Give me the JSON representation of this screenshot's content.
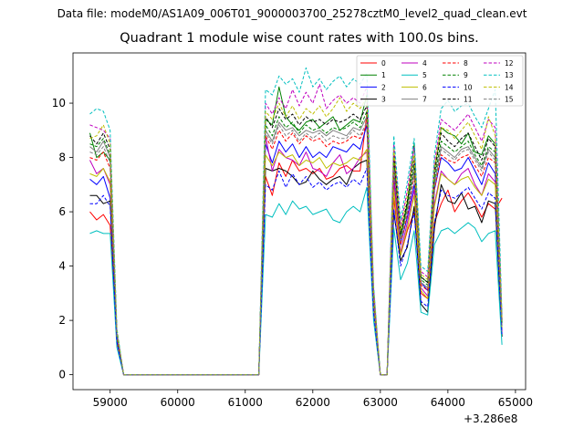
{
  "suptitle": "Data file: modeM0/AS1A09_006T01_9000003700_25278cztM0_level2_quad_clean.evt",
  "chart_data": {
    "type": "line",
    "title": "Quadrant 1 module wise count rates with 100.0s bins.",
    "xlabel": "",
    "ylabel": "",
    "x_offset_label": "+3.286e8",
    "xlim": [
      58450,
      65150
    ],
    "ylim": [
      -0.55,
      11.85
    ],
    "xticks": [
      59000,
      60000,
      61000,
      62000,
      63000,
      64000,
      65000
    ],
    "xtick_labels": [
      "59000",
      "60000",
      "61000",
      "62000",
      "63000",
      "64000",
      "65000"
    ],
    "yticks": [
      0,
      2,
      4,
      6,
      8,
      10
    ],
    "ytick_labels": [
      "0",
      "2",
      "4",
      "6",
      "8",
      "10"
    ],
    "legend_position": "upper right",
    "x": [
      58700,
      58800,
      58900,
      59000,
      59100,
      59200,
      59300,
      59400,
      59500,
      59600,
      59700,
      59800,
      59900,
      60000,
      60100,
      60200,
      60300,
      60400,
      60500,
      60600,
      60700,
      60800,
      60900,
      61000,
      61100,
      61200,
      61300,
      61400,
      61500,
      61600,
      61700,
      61800,
      61900,
      62000,
      62100,
      62200,
      62300,
      62400,
      62500,
      62600,
      62700,
      62800,
      62900,
      63000,
      63100,
      63200,
      63300,
      63400,
      63500,
      63600,
      63700,
      63800,
      63900,
      64000,
      64100,
      64200,
      64300,
      64400,
      64500,
      64600,
      64700,
      64800
    ],
    "series": [
      {
        "name": "0",
        "color": "#ff0000",
        "dash": false,
        "values": [
          6.0,
          5.7,
          5.9,
          5.5,
          1.2,
          0,
          0,
          0,
          0,
          0,
          0,
          0,
          0,
          0,
          0,
          0,
          0,
          0,
          0,
          0,
          0,
          0,
          0,
          0,
          0,
          0,
          7.3,
          6.6,
          7.8,
          7.3,
          7.9,
          7.5,
          7.6,
          7.4,
          7.6,
          7.2,
          7.3,
          7.6,
          7.7,
          7.5,
          7.5,
          9.6,
          2.5,
          0,
          0,
          6.5,
          4.4,
          5.3,
          6.0,
          3.0,
          2.8,
          5.6,
          6.3,
          6.8,
          6.0,
          6.4,
          6.7,
          6.3,
          5.8,
          6.3,
          6.1,
          6.5
        ]
      },
      {
        "name": "1",
        "color": "#008000",
        "dash": false,
        "values": [
          8.9,
          8.0,
          8.2,
          7.9,
          1.5,
          0,
          0,
          0,
          0,
          0,
          0,
          0,
          0,
          0,
          0,
          0,
          0,
          0,
          0,
          0,
          0,
          0,
          0,
          0,
          0,
          0,
          9.4,
          9.2,
          10.6,
          9.5,
          9.2,
          9.0,
          9.3,
          9.4,
          9.1,
          9.3,
          9.5,
          9.0,
          9.2,
          9.4,
          9.3,
          10.3,
          3.0,
          0,
          0,
          8.2,
          5.1,
          6.3,
          8.5,
          3.6,
          3.4,
          7.5,
          9.1,
          8.9,
          8.8,
          8.5,
          8.9,
          8.2,
          8.1,
          8.8,
          8.5,
          2.0
        ]
      },
      {
        "name": "2",
        "color": "#0000ff",
        "dash": false,
        "values": [
          7.2,
          7.0,
          7.3,
          6.5,
          1.3,
          0,
          0,
          0,
          0,
          0,
          0,
          0,
          0,
          0,
          0,
          0,
          0,
          0,
          0,
          0,
          0,
          0,
          0,
          0,
          0,
          0,
          8.5,
          7.8,
          8.6,
          8.2,
          8.5,
          8.0,
          8.4,
          8.0,
          8.2,
          8.0,
          8.4,
          8.3,
          8.2,
          8.5,
          8.3,
          9.2,
          2.8,
          0,
          0,
          7.4,
          4.8,
          5.8,
          7.0,
          3.4,
          3.1,
          6.8,
          8.0,
          7.8,
          7.5,
          7.6,
          8.0,
          7.5,
          7.0,
          7.8,
          7.4,
          1.8
        ]
      },
      {
        "name": "3",
        "color": "#000000",
        "dash": false,
        "values": [
          6.6,
          6.6,
          6.3,
          6.4,
          1.3,
          0,
          0,
          0,
          0,
          0,
          0,
          0,
          0,
          0,
          0,
          0,
          0,
          0,
          0,
          0,
          0,
          0,
          0,
          0,
          0,
          0,
          7.6,
          7.5,
          7.6,
          7.5,
          7.3,
          7.0,
          7.1,
          7.5,
          7.2,
          7.0,
          7.2,
          7.3,
          7.0,
          7.6,
          7.8,
          7.9,
          2.4,
          0,
          0,
          6.0,
          4.2,
          4.7,
          6.2,
          2.6,
          2.3,
          5.4,
          7.0,
          6.4,
          6.3,
          6.7,
          6.1,
          6.2,
          5.6,
          6.4,
          6.3,
          1.4
        ]
      },
      {
        "name": "4",
        "color": "#bf00bf",
        "dash": false,
        "values": [
          7.9,
          7.4,
          7.6,
          7.0,
          1.4,
          0,
          0,
          0,
          0,
          0,
          0,
          0,
          0,
          0,
          0,
          0,
          0,
          0,
          0,
          0,
          0,
          0,
          0,
          0,
          0,
          0,
          8.8,
          7.5,
          8.3,
          8.0,
          7.9,
          7.7,
          8.2,
          7.6,
          7.5,
          7.3,
          7.8,
          8.1,
          7.4,
          7.6,
          8.0,
          8.2,
          2.6,
          0,
          0,
          7.1,
          4.5,
          5.6,
          6.8,
          3.2,
          2.9,
          6.3,
          7.5,
          7.2,
          7.0,
          7.4,
          7.6,
          7.0,
          6.6,
          7.4,
          7.1,
          1.6
        ]
      },
      {
        "name": "5",
        "color": "#00bfbf",
        "dash": false,
        "values": [
          5.2,
          5.3,
          5.2,
          5.2,
          1.0,
          0,
          0,
          0,
          0,
          0,
          0,
          0,
          0,
          0,
          0,
          0,
          0,
          0,
          0,
          0,
          0,
          0,
          0,
          0,
          0,
          0,
          5.9,
          5.8,
          6.3,
          5.9,
          6.4,
          6.1,
          6.2,
          5.9,
          6.0,
          6.1,
          5.7,
          5.6,
          6.0,
          6.2,
          6.0,
          6.9,
          2.0,
          0,
          0,
          5.4,
          3.5,
          4.1,
          5.3,
          2.3,
          2.2,
          4.8,
          5.3,
          5.4,
          5.2,
          5.4,
          5.6,
          5.4,
          4.9,
          5.2,
          5.3,
          1.1
        ]
      },
      {
        "name": "6",
        "color": "#bfbf00",
        "dash": false,
        "values": [
          7.4,
          7.3,
          7.6,
          7.1,
          1.4,
          0,
          0,
          0,
          0,
          0,
          0,
          0,
          0,
          0,
          0,
          0,
          0,
          0,
          0,
          0,
          0,
          0,
          0,
          0,
          0,
          0,
          8.1,
          7.7,
          8.2,
          8.0,
          8.1,
          7.7,
          7.9,
          7.8,
          8.0,
          7.6,
          7.8,
          7.7,
          7.8,
          8.0,
          7.9,
          8.3,
          2.5,
          0,
          0,
          6.8,
          4.4,
          5.4,
          6.6,
          3.1,
          2.8,
          6.2,
          7.4,
          7.2,
          7.0,
          7.2,
          7.3,
          6.9,
          6.6,
          7.2,
          7.0,
          1.7
        ]
      },
      {
        "name": "7",
        "color": "#808080",
        "dash": false,
        "values": [
          8.4,
          8.2,
          8.6,
          8.0,
          1.5,
          0,
          0,
          0,
          0,
          0,
          0,
          0,
          0,
          0,
          0,
          0,
          0,
          0,
          0,
          0,
          0,
          0,
          0,
          0,
          0,
          0,
          9.0,
          8.6,
          9.3,
          9.0,
          9.1,
          8.8,
          9.0,
          8.9,
          9.0,
          8.8,
          9.0,
          8.9,
          8.8,
          9.1,
          9.0,
          9.5,
          2.8,
          0,
          0,
          7.7,
          5.0,
          6.1,
          7.5,
          3.4,
          3.2,
          7.0,
          8.4,
          8.2,
          8.0,
          8.3,
          8.4,
          8.0,
          7.6,
          8.3,
          8.0,
          1.9
        ]
      },
      {
        "name": "8",
        "color": "#ff0000",
        "dash": true,
        "values": [
          8.0,
          7.9,
          8.2,
          7.6,
          1.4,
          0,
          0,
          0,
          0,
          0,
          0,
          0,
          0,
          0,
          0,
          0,
          0,
          0,
          0,
          0,
          0,
          0,
          0,
          0,
          0,
          0,
          8.8,
          8.3,
          9.0,
          8.6,
          8.9,
          8.5,
          8.8,
          8.6,
          8.7,
          8.4,
          8.6,
          8.5,
          8.6,
          8.8,
          8.7,
          9.2,
          2.7,
          0,
          0,
          7.5,
          4.8,
          5.9,
          7.3,
          3.3,
          3.1,
          6.8,
          8.1,
          7.9,
          7.8,
          8.0,
          8.1,
          7.7,
          7.3,
          8.0,
          7.8,
          1.8
        ]
      },
      {
        "name": "9",
        "color": "#008000",
        "dash": true,
        "values": [
          8.5,
          8.4,
          8.7,
          8.1,
          1.5,
          0,
          0,
          0,
          0,
          0,
          0,
          0,
          0,
          0,
          0,
          0,
          0,
          0,
          0,
          0,
          0,
          0,
          0,
          0,
          0,
          0,
          9.2,
          8.8,
          9.5,
          9.1,
          9.3,
          8.9,
          9.2,
          9.0,
          9.1,
          8.9,
          9.1,
          9.0,
          9.1,
          9.3,
          9.1,
          9.7,
          2.9,
          0,
          0,
          7.9,
          5.1,
          6.2,
          7.7,
          3.5,
          3.3,
          7.2,
          8.6,
          8.4,
          8.2,
          8.4,
          8.6,
          8.1,
          7.7,
          8.4,
          8.2,
          1.9
        ]
      },
      {
        "name": "10",
        "color": "#0000ff",
        "dash": true,
        "values": [
          6.3,
          6.3,
          6.6,
          6.2,
          1.2,
          0,
          0,
          0,
          0,
          0,
          0,
          0,
          0,
          0,
          0,
          0,
          0,
          0,
          0,
          0,
          0,
          0,
          0,
          0,
          0,
          0,
          7.0,
          6.8,
          7.5,
          6.9,
          7.4,
          7.0,
          7.3,
          6.9,
          7.1,
          6.8,
          7.0,
          7.1,
          6.9,
          7.2,
          7.0,
          7.6,
          2.3,
          0,
          0,
          6.1,
          4.0,
          4.8,
          6.0,
          2.7,
          2.5,
          5.6,
          6.8,
          6.6,
          6.5,
          6.7,
          6.9,
          6.5,
          6.1,
          6.7,
          6.5,
          1.5
        ]
      },
      {
        "name": "11",
        "color": "#000000",
        "dash": true,
        "values": [
          8.8,
          8.5,
          8.9,
          8.3,
          1.6,
          0,
          0,
          0,
          0,
          0,
          0,
          0,
          0,
          0,
          0,
          0,
          0,
          0,
          0,
          0,
          0,
          0,
          0,
          0,
          0,
          0,
          9.5,
          9.1,
          9.8,
          9.4,
          9.6,
          9.2,
          9.5,
          9.3,
          9.4,
          9.2,
          9.4,
          9.3,
          9.4,
          9.6,
          9.4,
          9.9,
          3.0,
          0,
          0,
          8.1,
          5.2,
          6.4,
          7.9,
          3.6,
          3.4,
          7.4,
          8.9,
          8.6,
          8.4,
          8.7,
          8.9,
          8.4,
          7.9,
          8.7,
          8.4,
          2.0
        ]
      },
      {
        "name": "12",
        "color": "#bf00bf",
        "dash": true,
        "values": [
          9.2,
          9.1,
          9.0,
          8.7,
          1.6,
          0,
          0,
          0,
          0,
          0,
          0,
          0,
          0,
          0,
          0,
          0,
          0,
          0,
          0,
          0,
          0,
          0,
          0,
          0,
          0,
          0,
          10.0,
          9.6,
          10.2,
          9.8,
          10.5,
          9.9,
          10.4,
          10.0,
          10.7,
          9.8,
          10.1,
          10.3,
          10.0,
          10.2,
          10.0,
          10.6,
          3.2,
          0,
          0,
          8.5,
          5.5,
          6.8,
          8.4,
          3.8,
          3.6,
          7.8,
          9.4,
          9.2,
          9.0,
          9.3,
          9.6,
          9.1,
          8.6,
          9.4,
          9.1,
          2.1
        ]
      },
      {
        "name": "13",
        "color": "#00bfbf",
        "dash": true,
        "values": [
          9.6,
          9.8,
          9.7,
          9.0,
          1.7,
          0,
          0,
          0,
          0,
          0,
          0,
          0,
          0,
          0,
          0,
          0,
          0,
          0,
          0,
          0,
          0,
          0,
          0,
          0,
          0,
          0,
          10.5,
          10.3,
          11.0,
          10.7,
          10.9,
          10.4,
          11.3,
          10.6,
          10.9,
          10.5,
          10.8,
          11.0,
          10.6,
          10.9,
          10.7,
          11.1,
          3.3,
          0,
          0,
          8.8,
          5.7,
          7.1,
          8.7,
          4.0,
          3.8,
          8.1,
          9.8,
          10.1,
          9.7,
          9.9,
          10.0,
          9.5,
          9.1,
          9.8,
          10.5,
          2.2
        ]
      },
      {
        "name": "14",
        "color": "#bfbf00",
        "dash": true,
        "values": [
          8.7,
          8.8,
          9.2,
          8.5,
          1.6,
          0,
          0,
          0,
          0,
          0,
          0,
          0,
          0,
          0,
          0,
          0,
          0,
          0,
          0,
          0,
          0,
          0,
          0,
          0,
          0,
          0,
          9.7,
          9.4,
          10.0,
          9.5,
          9.9,
          9.4,
          9.8,
          9.6,
          9.9,
          9.5,
          9.8,
          10.2,
          9.7,
          10.0,
          9.8,
          10.2,
          3.1,
          0,
          0,
          8.3,
          5.3,
          6.6,
          8.1,
          3.7,
          3.5,
          7.6,
          9.1,
          9.0,
          8.7,
          9.0,
          9.3,
          8.8,
          8.3,
          9.5,
          8.8,
          2.0
        ]
      },
      {
        "name": "15",
        "color": "#808080",
        "dash": true,
        "values": [
          8.2,
          8.1,
          8.4,
          7.8,
          1.5,
          0,
          0,
          0,
          0,
          0,
          0,
          0,
          0,
          0,
          0,
          0,
          0,
          0,
          0,
          0,
          0,
          0,
          0,
          0,
          0,
          0,
          8.9,
          8.5,
          9.2,
          8.8,
          9.0,
          8.6,
          8.9,
          8.7,
          8.9,
          8.6,
          8.8,
          8.7,
          8.7,
          9.0,
          8.8,
          9.3,
          2.8,
          0,
          0,
          7.6,
          4.9,
          6.0,
          7.4,
          3.4,
          3.2,
          6.9,
          8.3,
          8.1,
          7.9,
          8.2,
          8.3,
          7.9,
          7.5,
          8.2,
          7.9,
          1.8
        ]
      }
    ]
  }
}
